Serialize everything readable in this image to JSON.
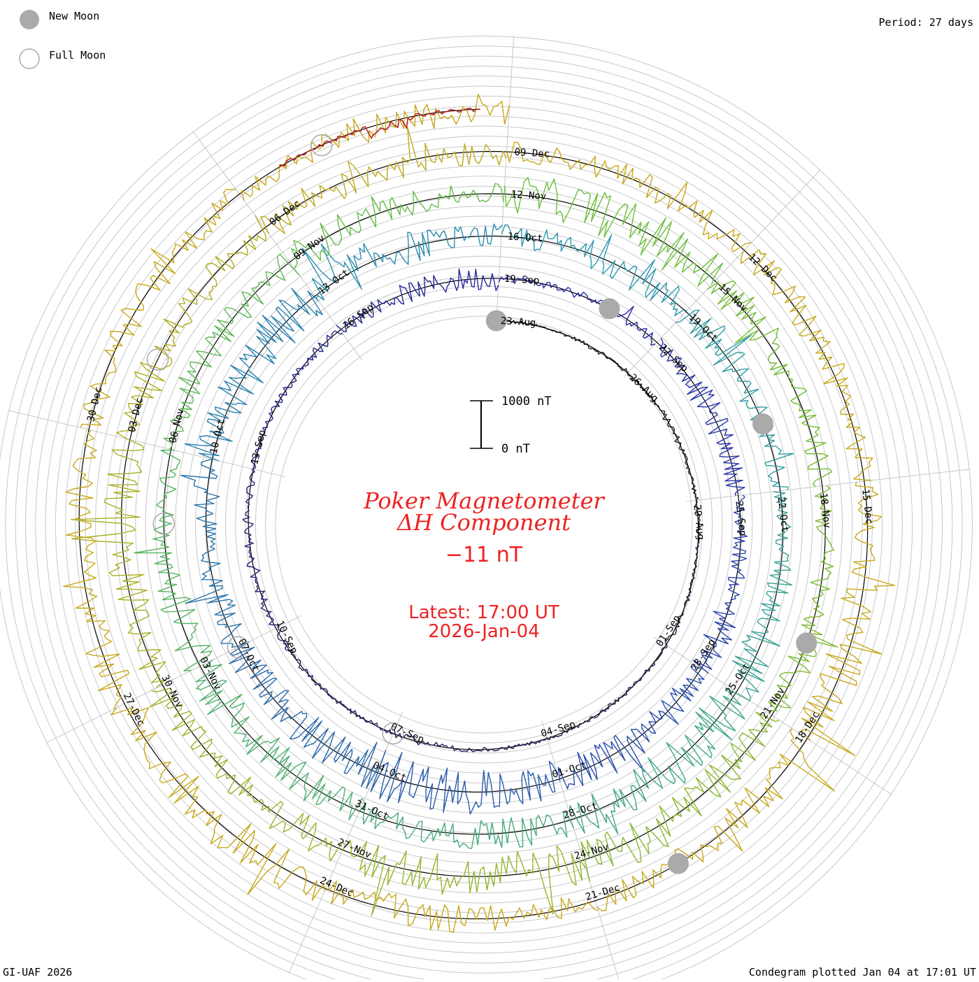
{
  "legend": {
    "new_moon": "New Moon",
    "full_moon": "Full Moon"
  },
  "period_label": "Period: 27 days",
  "footer": {
    "left": "GI-UAF 2026",
    "right": "Condegram plotted Jan 04 at 17:01 UT"
  },
  "scale_bar": {
    "top_label": "1000 nT",
    "bottom_label": "0 nT"
  },
  "title": {
    "line1": "Poker Magnetometer",
    "line2": "ΔH Component",
    "current_value": "−11 nT",
    "latest_line1": "Latest: 17:00 UT",
    "latest_line2": "2026-Jan-04"
  },
  "colors": {
    "title_red": "#ee2222",
    "grid": "#c8c8c8",
    "moon_new": "#aaaaaa",
    "moon_full_stroke": "#aaaaaa",
    "ring_stroke": "#000000"
  },
  "chart_data": {
    "type": "condegram",
    "title": "Poker Magnetometer ΔH Component",
    "period_days": 27,
    "start_date": "2025-08-23",
    "end_date": "2026-01-04",
    "units": "nT",
    "scale_nT": 1000,
    "latest_value_nT": -11,
    "turns": [
      {
        "start": "23-Aug",
        "color": "#000000",
        "labels": [
          "23-Aug",
          "26-Aug",
          "29-Aug",
          "01-Sep",
          "04-Sep",
          "07-Sep",
          "10-Sep",
          "13-Sep",
          "16-Sep"
        ]
      },
      {
        "start": "19-Sep",
        "color": "#2a2aa8",
        "labels": [
          "19-Sep",
          "22-Sep",
          "25-Sep",
          "28-Sep",
          "01-Oct",
          "04-Oct",
          "07-Oct",
          "10-Oct",
          "13-Oct"
        ]
      },
      {
        "start": "16-Oct",
        "color": "#2a9ab0",
        "labels": [
          "16-Oct",
          "19-Oct",
          "22-Oct",
          "25-Oct",
          "28-Oct",
          "31-Oct",
          "03-Nov",
          "06-Nov",
          "09-Nov"
        ]
      },
      {
        "start": "12-Nov",
        "color": "#6abf3a",
        "labels": [
          "12-Nov",
          "15-Nov",
          "18-Nov",
          "21-Nov",
          "24-Nov",
          "27-Nov",
          "30-Nov",
          "03-Dec",
          "06-Dec"
        ]
      },
      {
        "start": "09-Dec",
        "color": "#c8a81a",
        "labels": [
          "09-Dec",
          "12-Dec",
          "15-Dec",
          "18-Dec",
          "21-Dec",
          "24-Dec",
          "27-Dec",
          "30-Dec"
        ]
      },
      {
        "start": "02-Jan",
        "color": "#b01a1a",
        "labels": []
      }
    ],
    "moon_phases": {
      "new": [
        "2025-08-23",
        "2025-09-21",
        "2025-10-21",
        "2025-11-20",
        "2025-12-20"
      ],
      "full": [
        "2025-09-07",
        "2025-10-07",
        "2025-11-05",
        "2025-12-04",
        "2026-01-03"
      ]
    },
    "segments": [
      {
        "from_day": 0,
        "to_day": 27,
        "color": "#1a1a1a",
        "base": 0,
        "activity": [
          0.05,
          0.04,
          0.06,
          0.05,
          0.08,
          0.06,
          0.05,
          0.04,
          0.07,
          0.05,
          0.06,
          0.05,
          0.05,
          0.06,
          0.09,
          0.07,
          0.06,
          0.08,
          0.12,
          0.15,
          0.1,
          0.08,
          0.09,
          0.12,
          0.18,
          0.25,
          0.3
        ]
      },
      {
        "from_day": 27,
        "to_day": 54,
        "color": "#2a2aa8",
        "base": 0,
        "activity": [
          0.1,
          0.12,
          0.15,
          0.2,
          0.3,
          0.25,
          0.18,
          0.2,
          0.35,
          0.3,
          0.4,
          0.45,
          0.5,
          0.55,
          0.6,
          0.5,
          0.45,
          0.4,
          0.35,
          0.3,
          0.35,
          0.45,
          0.5,
          0.55,
          0.5,
          0.4,
          0.3
        ]
      },
      {
        "from_day": 54,
        "to_day": 81,
        "color": "#2a9ab0",
        "base": 0,
        "activity": [
          0.3,
          0.35,
          0.4,
          0.45,
          0.3,
          0.25,
          0.2,
          0.35,
          0.5,
          0.6,
          0.55,
          0.45,
          0.4,
          0.35,
          0.3,
          0.4,
          0.5,
          0.55,
          0.45,
          0.35,
          0.3,
          0.25,
          0.3,
          0.35,
          0.4,
          0.3,
          0.25
        ]
      },
      {
        "from_day": 81,
        "to_day": 108,
        "color": "#6abf3a",
        "base": 0,
        "activity": [
          0.5,
          0.55,
          0.6,
          0.45,
          0.35,
          0.3,
          0.25,
          0.3,
          0.35,
          0.4,
          0.45,
          0.55,
          0.6,
          0.55,
          0.45,
          0.4,
          0.35,
          0.3,
          0.35,
          0.45,
          0.5,
          0.4,
          0.35,
          0.3,
          0.4,
          0.45,
          0.35
        ]
      },
      {
        "from_day": 108,
        "to_day": 135,
        "color": "#c8a81a",
        "base": 0,
        "activity": [
          0.25,
          0.3,
          0.35,
          0.4,
          0.35,
          0.3,
          0.35,
          0.4,
          0.5,
          0.45,
          0.4,
          0.35,
          0.3,
          0.35,
          0.45,
          0.5,
          0.55,
          0.5,
          0.45,
          0.4,
          0.35,
          0.3,
          0.35,
          0.3,
          0.3,
          0.35,
          0.4
        ]
      }
    ]
  }
}
